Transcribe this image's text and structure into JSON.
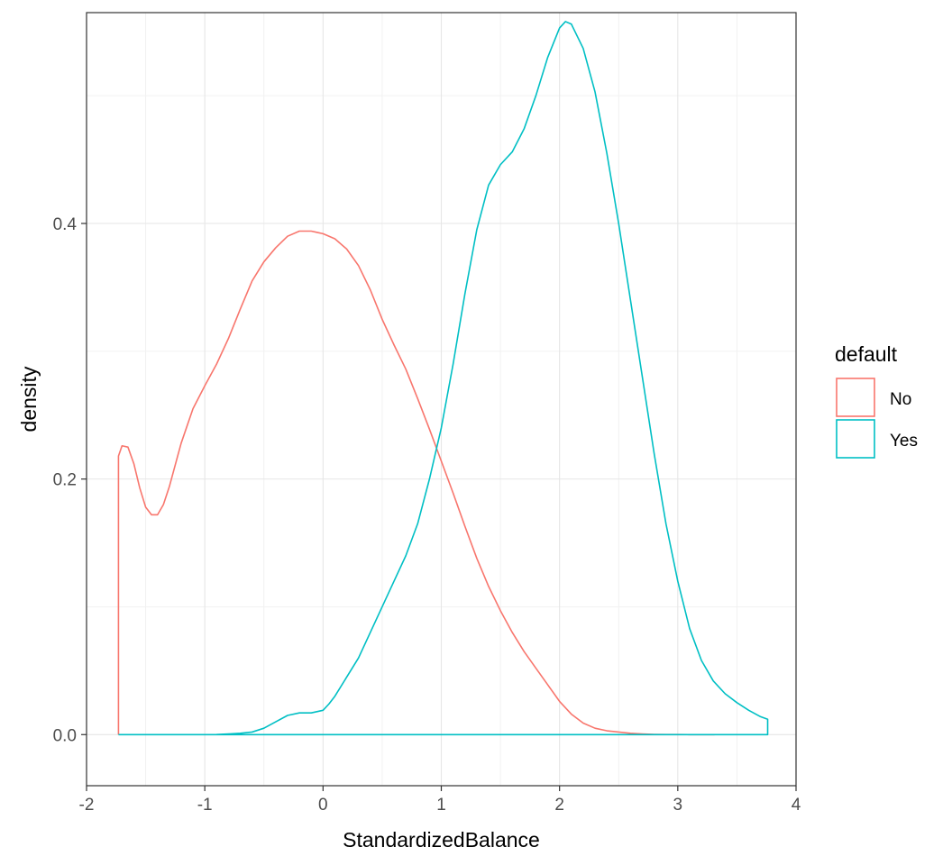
{
  "chart_data": {
    "type": "area",
    "xlabel": "StandardizedBalance",
    "ylabel": "density",
    "xlim": [
      -2,
      4
    ],
    "ylim": [
      -0.04,
      0.565
    ],
    "x_ticks": [
      -2,
      -1,
      0,
      1,
      2,
      3,
      4
    ],
    "x_tick_labels": [
      "-2",
      "-1",
      "0",
      "1",
      "2",
      "3",
      "4"
    ],
    "y_ticks": [
      0.0,
      0.2,
      0.4
    ],
    "y_tick_labels": [
      "0.0",
      "0.2",
      "0.4"
    ],
    "x_minor_ticks": [
      -1.5,
      -0.5,
      0.5,
      1.5,
      2.5,
      3.5
    ],
    "y_minor_ticks": [
      0.1,
      0.3,
      0.5
    ],
    "grid": true,
    "legend": {
      "title": "default",
      "position": "right",
      "entries": [
        "No",
        "Yes"
      ]
    },
    "series": [
      {
        "name": "No",
        "color": "#F8766D",
        "x": [
          -1.73,
          -1.73,
          -1.7,
          -1.65,
          -1.6,
          -1.55,
          -1.5,
          -1.45,
          -1.4,
          -1.35,
          -1.3,
          -1.2,
          -1.1,
          -1.0,
          -0.9,
          -0.8,
          -0.7,
          -0.6,
          -0.5,
          -0.4,
          -0.3,
          -0.2,
          -0.1,
          -0.05,
          0.0,
          0.1,
          0.2,
          0.3,
          0.4,
          0.5,
          0.6,
          0.7,
          0.8,
          0.9,
          1.0,
          1.1,
          1.2,
          1.3,
          1.4,
          1.5,
          1.6,
          1.7,
          1.8,
          1.9,
          2.0,
          2.1,
          2.2,
          2.3,
          2.4,
          2.5,
          2.6,
          2.7,
          2.8,
          2.9,
          3.0,
          3.1,
          3.2,
          3.31,
          3.31
        ],
        "y": [
          0.0,
          0.218,
          0.226,
          0.225,
          0.212,
          0.193,
          0.178,
          0.172,
          0.172,
          0.18,
          0.194,
          0.228,
          0.255,
          0.273,
          0.29,
          0.31,
          0.333,
          0.355,
          0.37,
          0.381,
          0.39,
          0.394,
          0.394,
          0.393,
          0.392,
          0.388,
          0.38,
          0.367,
          0.348,
          0.325,
          0.305,
          0.286,
          0.263,
          0.239,
          0.214,
          0.189,
          0.163,
          0.138,
          0.116,
          0.097,
          0.08,
          0.065,
          0.052,
          0.039,
          0.026,
          0.016,
          0.009,
          0.005,
          0.003,
          0.002,
          0.001,
          0.0005,
          0.0002,
          0.0001,
          0.0001,
          0.0,
          0.0,
          0.0,
          0.0
        ]
      },
      {
        "name": "Yes",
        "color": "#00BFC4",
        "x": [
          -1.73,
          -1.0,
          -0.9,
          -0.8,
          -0.7,
          -0.6,
          -0.5,
          -0.4,
          -0.3,
          -0.2,
          -0.1,
          0.0,
          0.05,
          0.1,
          0.2,
          0.3,
          0.4,
          0.5,
          0.6,
          0.7,
          0.8,
          0.9,
          1.0,
          1.1,
          1.2,
          1.3,
          1.4,
          1.5,
          1.6,
          1.7,
          1.8,
          1.9,
          2.0,
          2.05,
          2.1,
          2.2,
          2.3,
          2.4,
          2.5,
          2.6,
          2.7,
          2.8,
          2.9,
          3.0,
          3.1,
          3.2,
          3.3,
          3.4,
          3.5,
          3.6,
          3.7,
          3.76,
          3.76,
          -1.73
        ],
        "y": [
          0.0,
          0.0,
          0.0001,
          0.0005,
          0.001,
          0.002,
          0.005,
          0.01,
          0.015,
          0.017,
          0.017,
          0.019,
          0.024,
          0.03,
          0.045,
          0.06,
          0.08,
          0.1,
          0.12,
          0.14,
          0.165,
          0.2,
          0.24,
          0.29,
          0.345,
          0.395,
          0.43,
          0.446,
          0.456,
          0.474,
          0.5,
          0.53,
          0.553,
          0.558,
          0.556,
          0.537,
          0.503,
          0.455,
          0.4,
          0.34,
          0.28,
          0.22,
          0.165,
          0.12,
          0.083,
          0.058,
          0.042,
          0.032,
          0.025,
          0.019,
          0.014,
          0.012,
          0.0,
          0.0
        ]
      }
    ]
  }
}
